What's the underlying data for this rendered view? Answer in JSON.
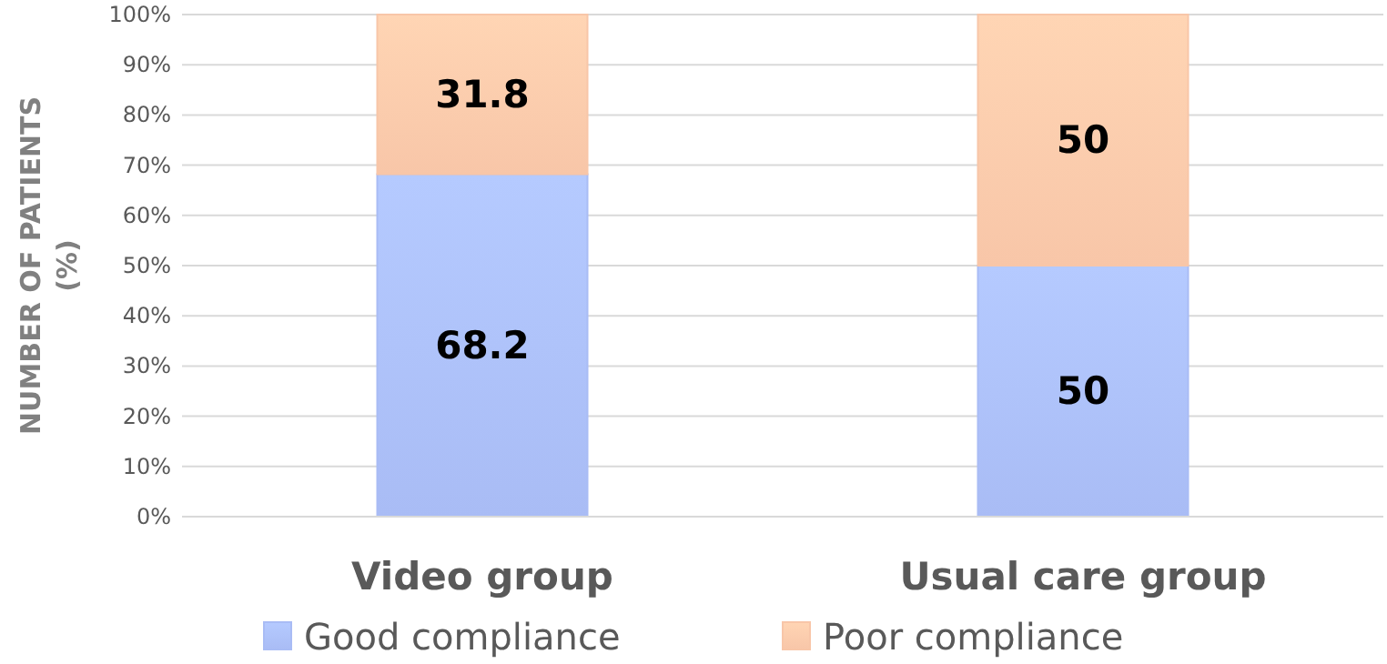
{
  "chart_data": {
    "type": "bar",
    "stacked": true,
    "ylabel": "NUMBER OF PATIENTS (%)",
    "categories": [
      "Video group",
      "Usual care group"
    ],
    "series": [
      {
        "name": "Good compliance",
        "color": "#a9bcf5",
        "values": [
          68.2,
          50
        ]
      },
      {
        "name": "Poor compliance",
        "color": "#f8c6a8",
        "values": [
          31.8,
          50
        ]
      }
    ],
    "ylim": [
      0,
      100
    ],
    "yticks": [
      {
        "value": 0,
        "label": "0%"
      },
      {
        "value": 10,
        "label": "10%"
      },
      {
        "value": 20,
        "label": "20%"
      },
      {
        "value": 30,
        "label": "30%"
      },
      {
        "value": 40,
        "label": "40%"
      },
      {
        "value": 50,
        "label": "50%"
      },
      {
        "value": 60,
        "label": "60%"
      },
      {
        "value": 70,
        "label": "70%"
      },
      {
        "value": 80,
        "label": "80%"
      },
      {
        "value": 90,
        "label": "90%"
      },
      {
        "value": 100,
        "label": "100%"
      }
    ],
    "grid": "y",
    "data_labels": true,
    "legend": "bottom"
  }
}
